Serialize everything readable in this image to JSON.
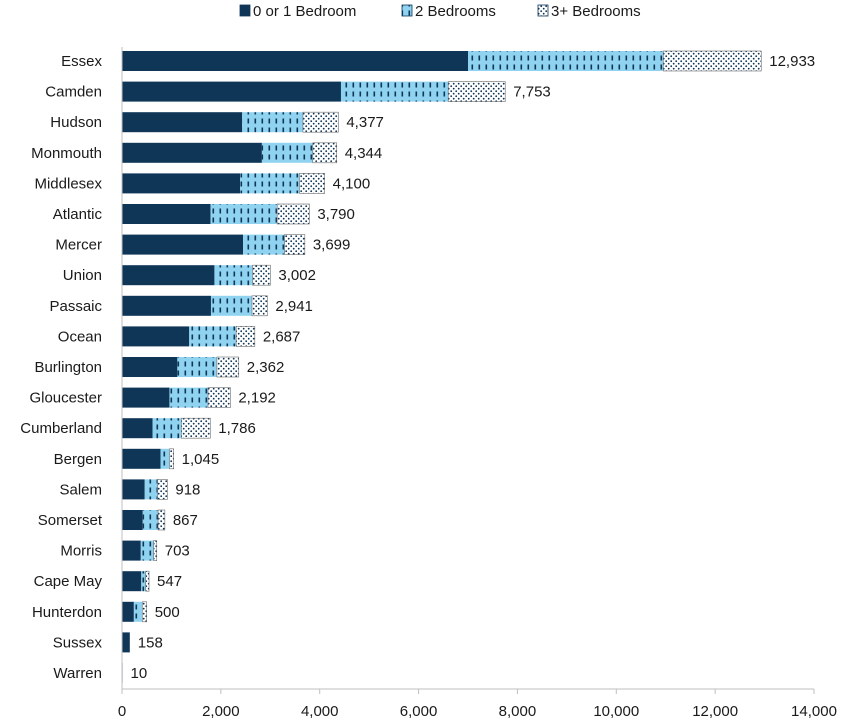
{
  "chart_data": {
    "type": "bar",
    "orientation": "horizontal",
    "stacked": true,
    "title": "",
    "xlabel": "",
    "ylabel": "",
    "xlim": [
      0,
      14000
    ],
    "x_ticks": [
      0,
      2000,
      4000,
      6000,
      8000,
      10000,
      12000,
      14000
    ],
    "x_tick_labels": [
      "0",
      "2,000",
      "4,000",
      "6,000",
      "8,000",
      "10,000",
      "12,000",
      "14,000"
    ],
    "grid": false,
    "legend_position": "top",
    "categories": [
      "Essex",
      "Camden",
      "Hudson",
      "Monmouth",
      "Middlesex",
      "Atlantic",
      "Mercer",
      "Union",
      "Passaic",
      "Ocean",
      "Burlington",
      "Gloucester",
      "Cumberland",
      "Bergen",
      "Salem",
      "Somerset",
      "Morris",
      "Cape May",
      "Hunterdon",
      "Sussex",
      "Warren"
    ],
    "series": [
      {
        "name": "0 or 1 Bedroom",
        "color": "#0f3557",
        "pattern": "solid",
        "values": [
          7000,
          4430,
          2430,
          2830,
          2390,
          1790,
          2450,
          1870,
          1800,
          1360,
          1120,
          960,
          620,
          780,
          460,
          420,
          380,
          390,
          240,
          158,
          10
        ]
      },
      {
        "name": "2 Bedrooms",
        "color": "#8fd3f0",
        "pattern": "dashes",
        "values": [
          3950,
          2170,
          1230,
          1030,
          1200,
          1350,
          840,
          770,
          830,
          950,
          800,
          780,
          580,
          180,
          260,
          310,
          260,
          90,
          170,
          0,
          0
        ]
      },
      {
        "name": "3+ Bedrooms",
        "color": "#ffffff",
        "pattern": "dots",
        "values": [
          1983,
          1153,
          717,
          484,
          510,
          650,
          409,
          362,
          311,
          377,
          442,
          452,
          586,
          85,
          198,
          137,
          63,
          67,
          90,
          0,
          0
        ]
      }
    ],
    "totals": [
      12933,
      7753,
      4377,
      4344,
      4100,
      3790,
      3699,
      3002,
      2941,
      2687,
      2362,
      2192,
      1786,
      1045,
      918,
      867,
      703,
      547,
      500,
      158,
      10
    ],
    "total_labels": [
      "12,933",
      "7,753",
      "4,377",
      "4,344",
      "4,100",
      "3,790",
      "3,699",
      "3,002",
      "2,941",
      "2,687",
      "2,362",
      "2,192",
      "1,786",
      "1,045",
      "918",
      "867",
      "703",
      "547",
      "500",
      "158",
      "10"
    ]
  }
}
